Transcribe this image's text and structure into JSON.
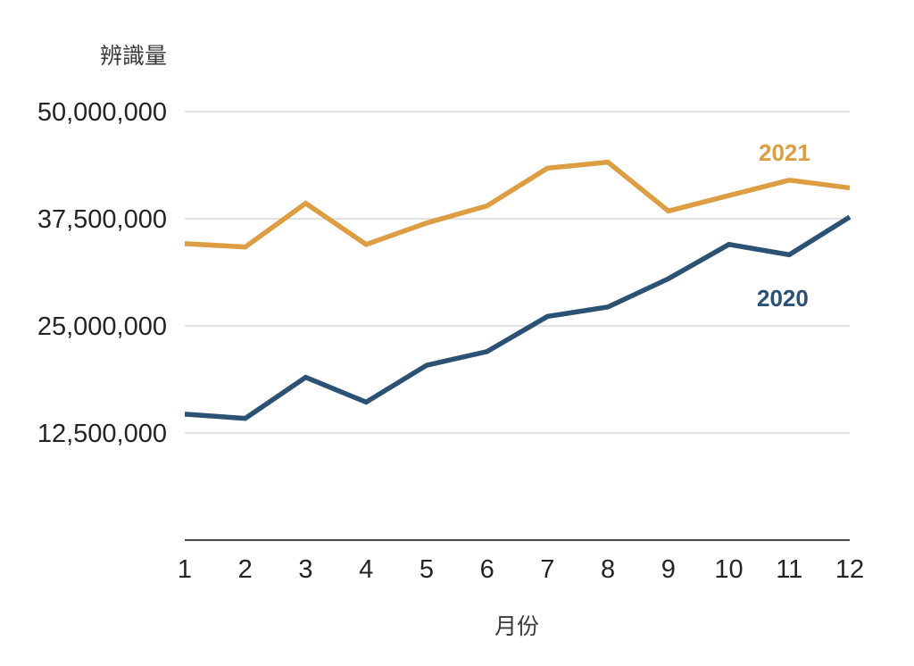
{
  "chart_data": {
    "type": "line",
    "title": "辨識量",
    "xlabel": "月份",
    "categories": [
      "1",
      "2",
      "3",
      "4",
      "5",
      "6",
      "7",
      "8",
      "9",
      "10",
      "11",
      "12"
    ],
    "series": [
      {
        "name": "2021",
        "color": "#DD9D42",
        "values": [
          34600000,
          34200000,
          39300000,
          34500000,
          37000000,
          39000000,
          43400000,
          44100000,
          38400000,
          40200000,
          42000000,
          41100000
        ]
      },
      {
        "name": "2020",
        "color": "#2B5274",
        "values": [
          14700000,
          14200000,
          19000000,
          16100000,
          20400000,
          22000000,
          26100000,
          27200000,
          30500000,
          34500000,
          33300000,
          37700000
        ]
      }
    ],
    "ylim": [
      0,
      50000000
    ],
    "yticks": [
      {
        "value": 12500000,
        "label": "12,500,000"
      },
      {
        "value": 25000000,
        "label": "25,000,000"
      },
      {
        "value": 37500000,
        "label": "37,500,000"
      },
      {
        "value": 50000000,
        "label": "50,000,000"
      }
    ],
    "grid": "horizontal-only",
    "legend_position": "inline-right-of-lines",
    "colors": {
      "background": "#FFFFFF",
      "gridline": "#D9D9D9",
      "axis_line": "#4A4A4A",
      "tick_text": "#242424",
      "title_text": "#3A3A3A"
    }
  }
}
